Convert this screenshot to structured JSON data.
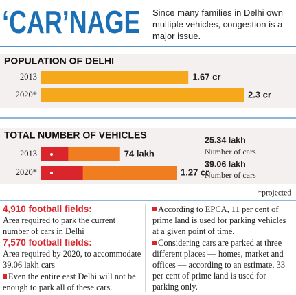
{
  "title": "‘CAR’NAGE",
  "subtitle": "Since many families in Delhi own multiple vehicles, congestion is a major issue.",
  "chart_data": [
    {
      "type": "bar",
      "orientation": "horizontal",
      "title": "POPULATION OF DELHI",
      "categories": [
        "2013",
        "2020*"
      ],
      "values": [
        1.67,
        2.3
      ],
      "value_labels": [
        "1.67 cr",
        "2.3 cr"
      ],
      "color": "#f5a81c"
    },
    {
      "type": "bar",
      "orientation": "horizontal",
      "title": "TOTAL NUMBER OF VEHICLES",
      "categories": [
        "2013",
        "2020*"
      ],
      "series": [
        {
          "color": "#f07d1f",
          "values": [
            74,
            127
          ],
          "value_labels": [
            "74 lakh",
            "1.27 cr"
          ]
        },
        {
          "name": "Number of cars",
          "color": "#d9252b",
          "values": [
            25.34,
            39.06
          ],
          "value_labels": [
            "25.34 lakh",
            "39.06 lakh"
          ]
        }
      ],
      "note": "*projected"
    }
  ],
  "notes": {
    "left": [
      {
        "heading": "4,910 football fields:",
        "text": "Area required to park the current number of cars in Delhi"
      },
      {
        "heading": "7,570 football fields:",
        "text": "Area required by 2020, to accommodate 39.06 lakh cars"
      },
      {
        "text": "Even the entire east Delhi will not be enough to park all of these cars."
      }
    ],
    "right": [
      {
        "text": "According to EPCA, 11 per cent of prime land is used for parking vehicles at a given point of time."
      },
      {
        "text": "Considering cars are parked at three different places — homes, market and offices — according to an estimate, 33 per cent of prime land is used for parking only."
      }
    ]
  }
}
